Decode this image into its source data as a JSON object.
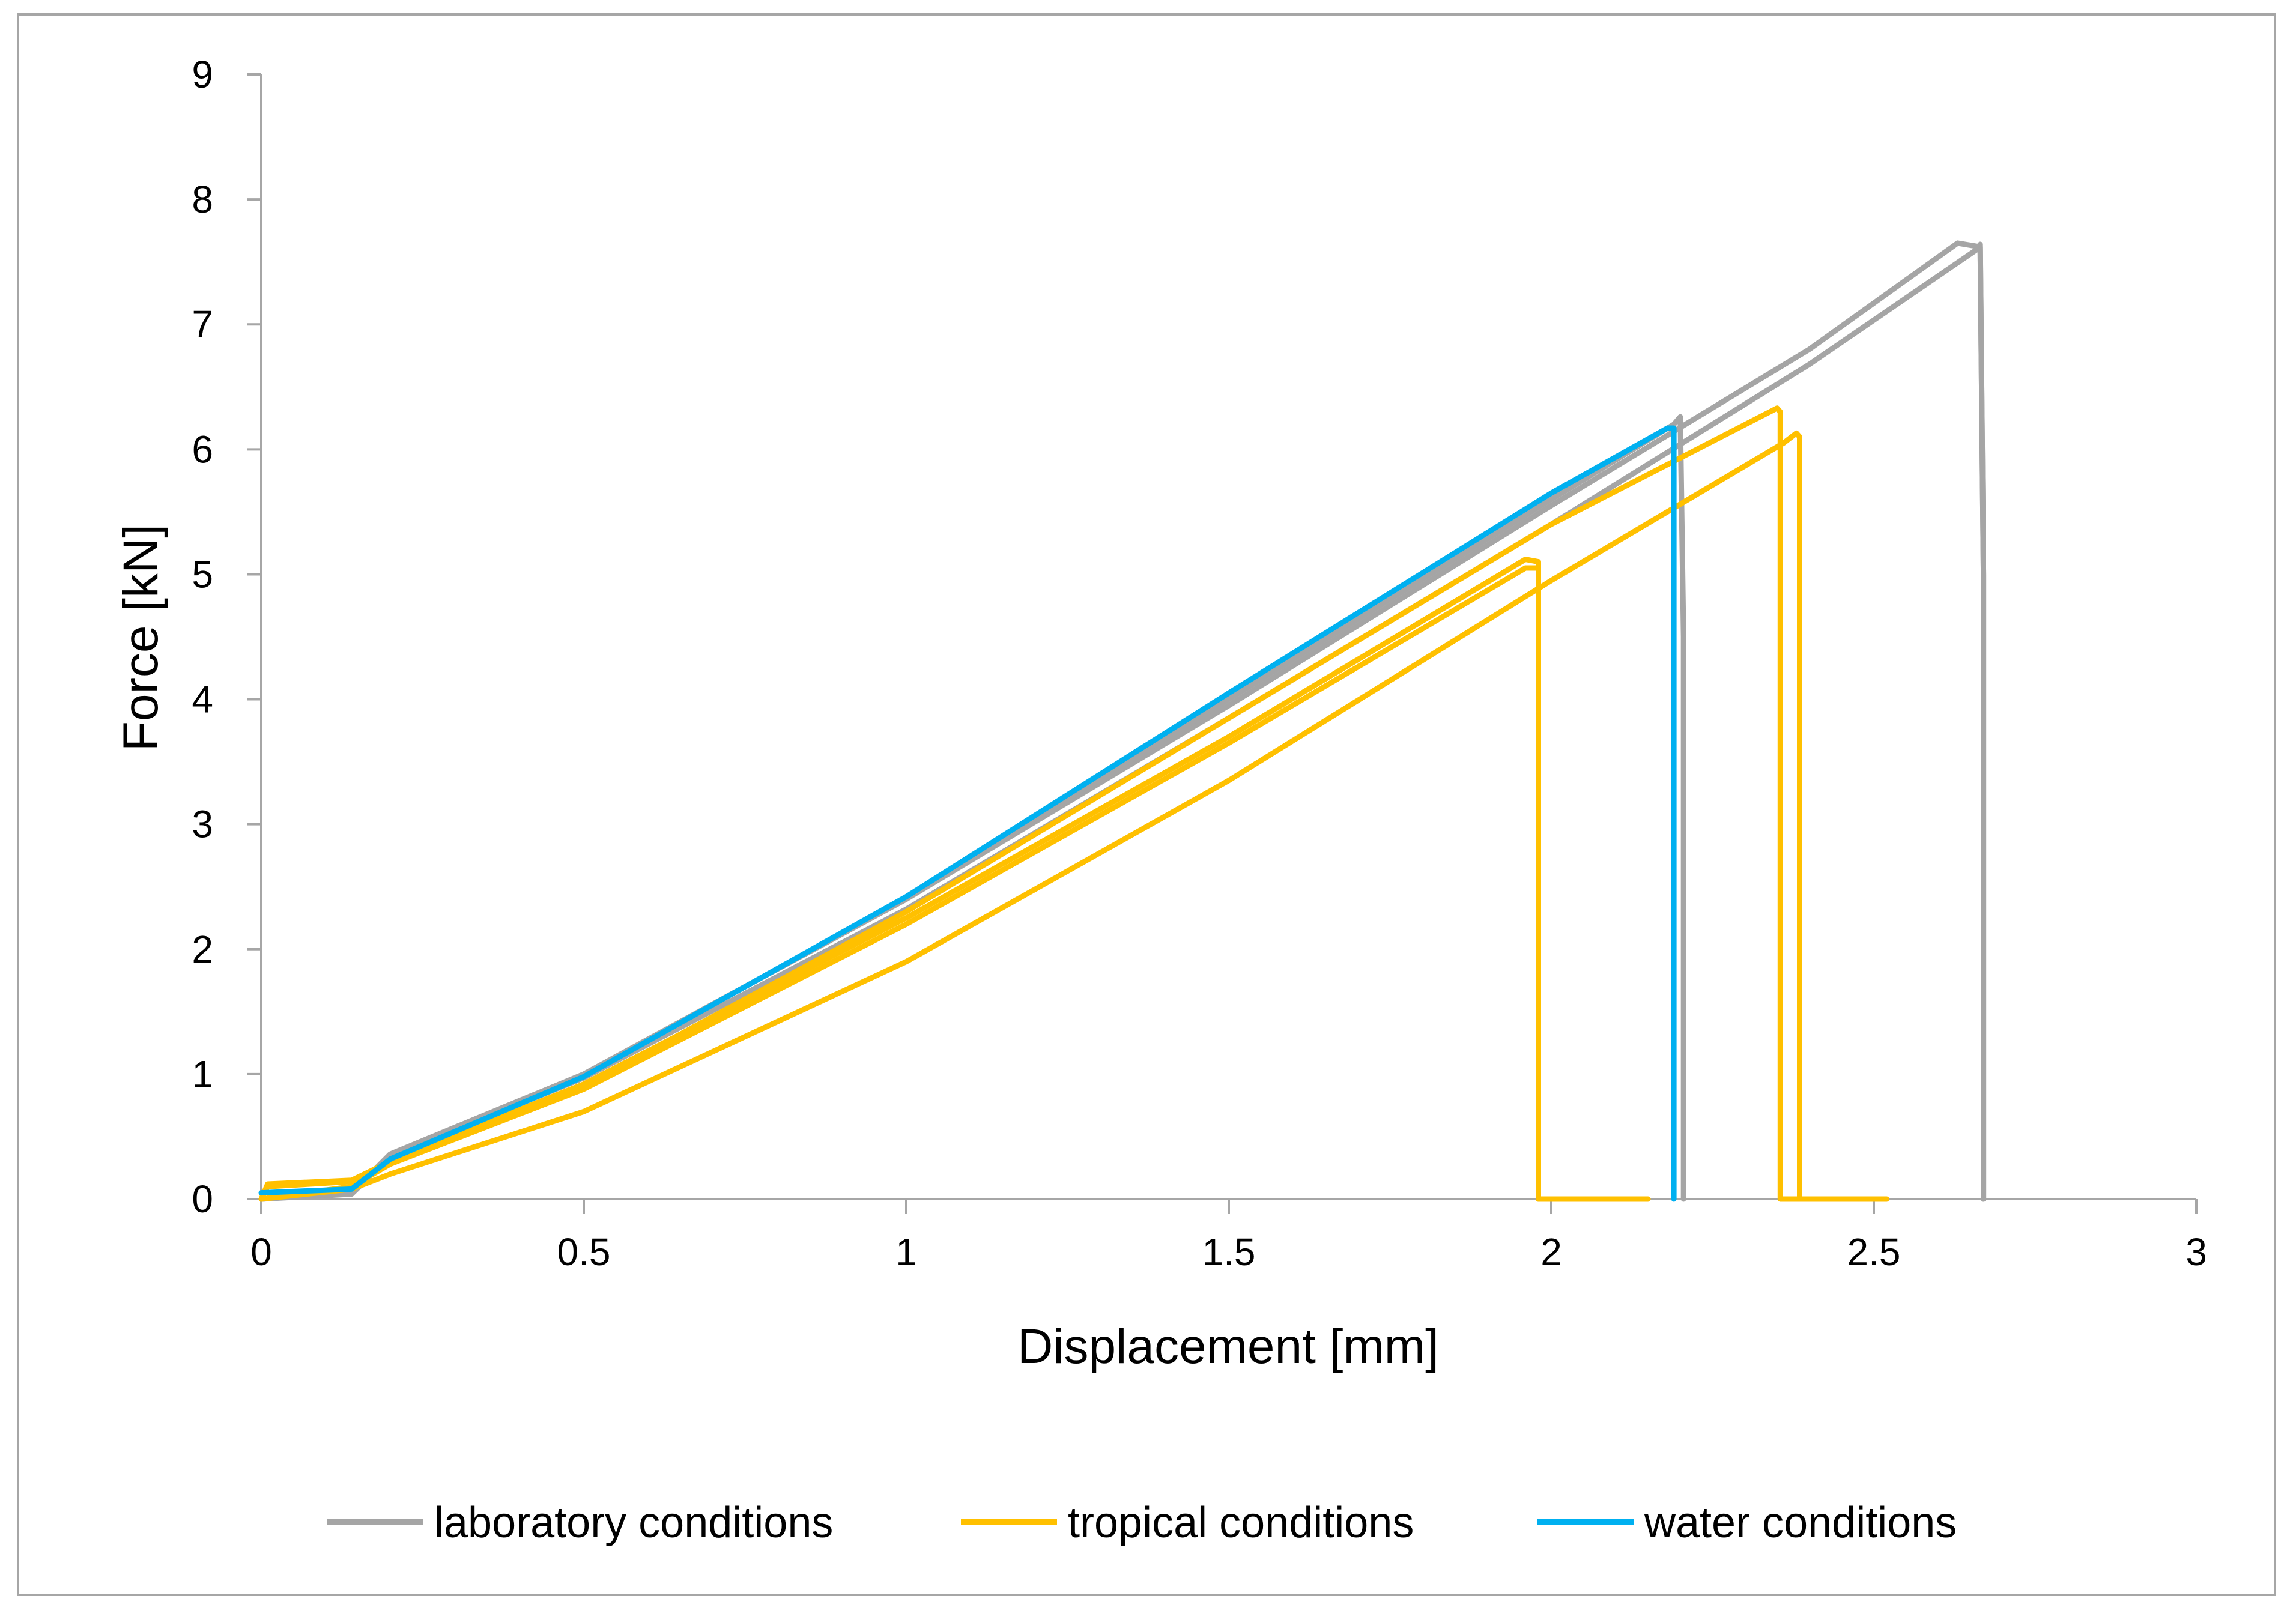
{
  "chart_data": {
    "type": "line",
    "xlabel": "Displacement [mm]",
    "ylabel": "Force  [kN]",
    "xlim": [
      0,
      3
    ],
    "ylim": [
      0,
      9
    ],
    "xticks": [
      0,
      0.5,
      1,
      1.5,
      2,
      2.5,
      3
    ],
    "xtick_labels": [
      "0",
      "0.5",
      "1",
      "1.5",
      "2",
      "2.5",
      "3"
    ],
    "yticks": [
      0,
      1,
      2,
      3,
      4,
      5,
      6,
      7,
      8,
      9
    ],
    "ytick_labels": [
      "0",
      "1",
      "2",
      "3",
      "4",
      "5",
      "6",
      "7",
      "8",
      "9"
    ],
    "grid": false,
    "legend_position": "bottom",
    "legend": [
      {
        "label": "laboratory conditions",
        "color": "#a5a5a5"
      },
      {
        "label": "tropical conditions",
        "color": "#ffc000"
      },
      {
        "label": "water conditions",
        "color": "#00b0f0"
      }
    ],
    "series": [
      {
        "group": "laboratory conditions",
        "color": "#a5a5a5",
        "x": [
          0,
          0.14,
          0.2,
          0.5,
          1.0,
          1.5,
          2.0,
          2.4,
          2.63,
          2.665,
          2.67,
          2.67
        ],
        "y": [
          0,
          0.05,
          0.36,
          1.0,
          2.4,
          3.95,
          5.55,
          6.8,
          7.65,
          7.62,
          5.0,
          0
        ]
      },
      {
        "group": "laboratory conditions",
        "color": "#a5a5a5",
        "x": [
          0,
          0.14,
          0.2,
          0.5,
          1.0,
          1.5,
          2.0,
          2.4,
          2.66,
          2.665,
          2.67,
          2.67
        ],
        "y": [
          0,
          0.04,
          0.34,
          0.97,
          2.32,
          3.85,
          5.4,
          6.68,
          7.6,
          7.64,
          5.0,
          0
        ]
      },
      {
        "group": "laboratory conditions",
        "color": "#a5a5a5",
        "x": [
          0,
          0.14,
          0.2,
          0.5,
          1.0,
          1.5,
          2.0,
          2.19,
          2.2,
          2.205,
          2.205
        ],
        "y": [
          0,
          0.05,
          0.35,
          1.0,
          2.4,
          4.0,
          5.6,
          6.2,
          6.26,
          4.5,
          0
        ]
      },
      {
        "group": "tropical conditions",
        "color": "#ffc000",
        "x": [
          0,
          0.01,
          0.14,
          0.2,
          0.5,
          1.0,
          1.5,
          1.96,
          1.98,
          1.98,
          2.15
        ],
        "y": [
          0,
          0.12,
          0.15,
          0.3,
          0.92,
          2.25,
          3.7,
          5.12,
          5.1,
          0,
          0
        ]
      },
      {
        "group": "tropical conditions",
        "color": "#ffc000",
        "x": [
          0,
          0.01,
          0.14,
          0.2,
          0.5,
          1.0,
          1.5,
          1.96,
          1.98,
          1.98,
          2.1
        ],
        "y": [
          0,
          0.1,
          0.14,
          0.28,
          0.88,
          2.2,
          3.65,
          5.05,
          5.05,
          0,
          0
        ]
      },
      {
        "group": "tropical conditions",
        "color": "#ffc000",
        "x": [
          0,
          0.14,
          0.2,
          0.5,
          1.0,
          1.5,
          2.0,
          2.35,
          2.355,
          2.355,
          2.4
        ],
        "y": [
          0,
          0.1,
          0.28,
          0.9,
          2.3,
          3.85,
          5.4,
          6.33,
          6.3,
          0,
          0
        ]
      },
      {
        "group": "tropical conditions",
        "color": "#ffc000",
        "x": [
          0,
          0.14,
          0.2,
          0.5,
          1.0,
          1.5,
          2.0,
          2.36,
          2.38,
          2.385,
          2.385,
          2.52
        ],
        "y": [
          0,
          0.08,
          0.2,
          0.7,
          1.9,
          3.35,
          4.95,
          6.05,
          6.13,
          6.1,
          0,
          0
        ]
      },
      {
        "group": "water conditions",
        "color": "#00b0f0",
        "x": [
          0,
          0.14,
          0.2,
          0.5,
          1.0,
          1.5,
          2.0,
          2.18,
          2.19,
          2.19
        ],
        "y": [
          0.05,
          0.08,
          0.32,
          0.98,
          2.42,
          4.05,
          5.65,
          6.17,
          6.17,
          0
        ]
      }
    ]
  }
}
